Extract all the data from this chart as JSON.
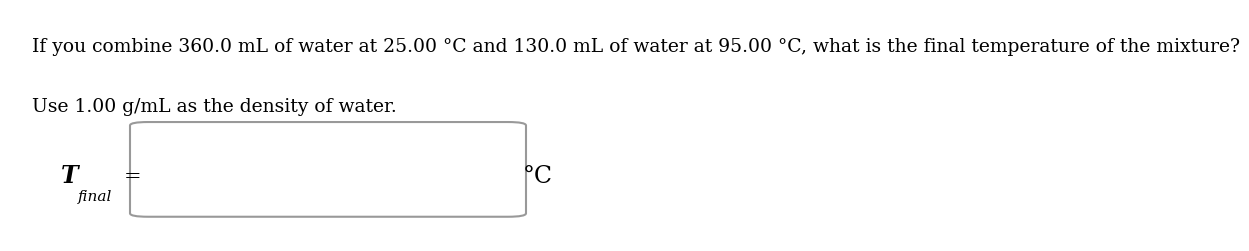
{
  "line1": "If you combine 360.0 mL of water at 25.00 °C and 130.0 mL of water at 95.00 °C, what is the final temperature of the mixture?",
  "line2": "Use 1.00 g/mL as the density of water.",
  "label_T": "T",
  "label_sub": "final",
  "label_equals": "=",
  "unit": "°C",
  "bg_color": "#ffffff",
  "text_color": "#000000",
  "box_facecolor": "#ffffff",
  "box_edgecolor": "#999999",
  "font_size_body": 13.5,
  "font_size_T": 17,
  "font_size_sub": 11,
  "font_size_eq": 15,
  "font_size_unit": 17
}
